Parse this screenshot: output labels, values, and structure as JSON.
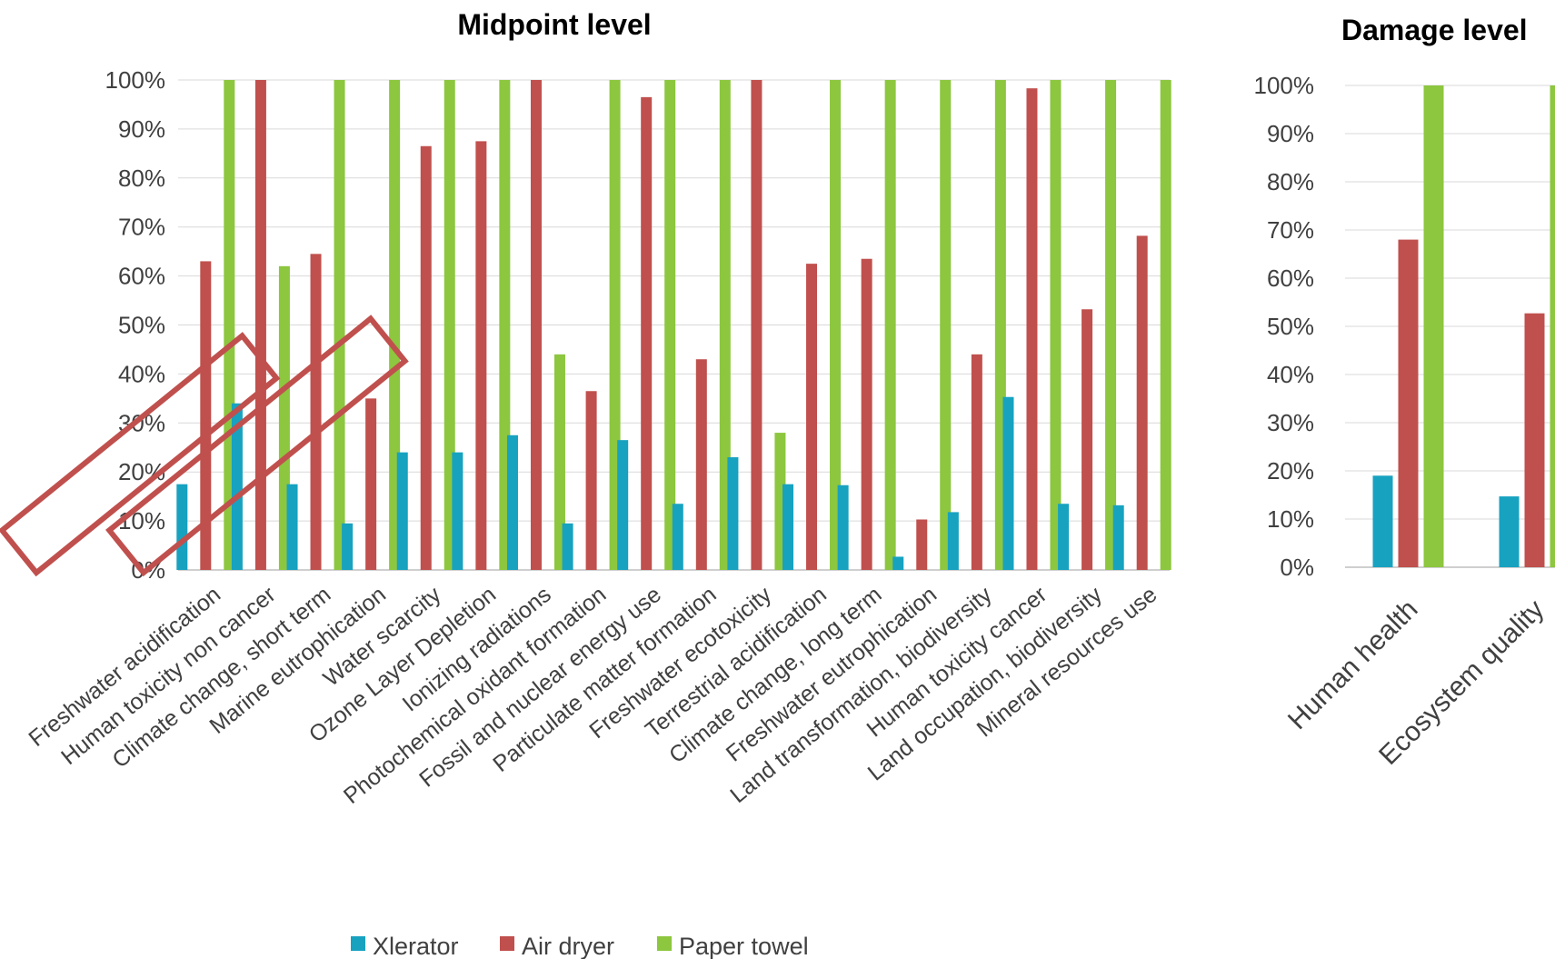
{
  "chart_data": [
    {
      "type": "bar",
      "title": "Midpoint level",
      "xlabel": "",
      "ylabel": "",
      "ylim": [
        0,
        100
      ],
      "y_tick_labels": [
        "0%",
        "10%",
        "20%",
        "30%",
        "40%",
        "50%",
        "60%",
        "70%",
        "80%",
        "90%",
        "100%"
      ],
      "grid": true,
      "legend_position": "bottom",
      "categories": [
        "Freshwater acidification",
        "Human toxicity non cancer",
        "Climate change, short term",
        "Marine eutrophication",
        "Water scarcity",
        "Ozone Layer Depletion",
        "Ionizing radiations",
        "Photochemical oxidant formation",
        "Fossil and nuclear energy use",
        "Particulate matter formation",
        "Freshwater ecotoxicity",
        "Terrestrial acidification",
        "Climate change, long term",
        "Freshwater eutrophication",
        "Land transformation, biodiversity",
        "Human toxicity cancer",
        "Land occupation, biodiversity",
        "Mineral resources use"
      ],
      "highlighted_categories": [
        "Climate change, short term",
        "Water scarcity"
      ],
      "series": [
        {
          "name": "Xlerator",
          "color": "#17a2c0",
          "values": [
            17.5,
            34,
            17.5,
            9.5,
            24,
            24,
            27.5,
            9.5,
            26.5,
            13.5,
            23,
            17.5,
            17.3,
            2.7,
            11.8,
            35.3,
            13.5,
            13.2
          ]
        },
        {
          "name": "Air dryer",
          "color": "#c0504d",
          "values": [
            63,
            100,
            64.5,
            35,
            86.5,
            87.5,
            100,
            36.5,
            96.5,
            43,
            100,
            62.5,
            63.5,
            10.3,
            44,
            98.3,
            53.2,
            68.2
          ]
        },
        {
          "name": "Paper towel",
          "color": "#8dc63f",
          "values": [
            100,
            62,
            100,
            100,
            100,
            100,
            44,
            100,
            100,
            100,
            28,
            100,
            100,
            100,
            100,
            100,
            100,
            100
          ]
        }
      ]
    },
    {
      "type": "bar",
      "title": "Damage level",
      "xlabel": "",
      "ylabel": "",
      "ylim": [
        0,
        100
      ],
      "y_tick_labels": [
        "0%",
        "10%",
        "20%",
        "30%",
        "40%",
        "50%",
        "60%",
        "70%",
        "80%",
        "90%",
        "100%"
      ],
      "grid": true,
      "categories": [
        "Human health",
        "Ecosystem quality"
      ],
      "series": [
        {
          "name": "Xlerator",
          "color": "#17a2c0",
          "values": [
            19,
            14.7
          ]
        },
        {
          "name": "Air dryer",
          "color": "#c0504d",
          "values": [
            68,
            52.7
          ]
        },
        {
          "name": "Paper towel",
          "color": "#8dc63f",
          "values": [
            100,
            100
          ]
        }
      ]
    }
  ]
}
